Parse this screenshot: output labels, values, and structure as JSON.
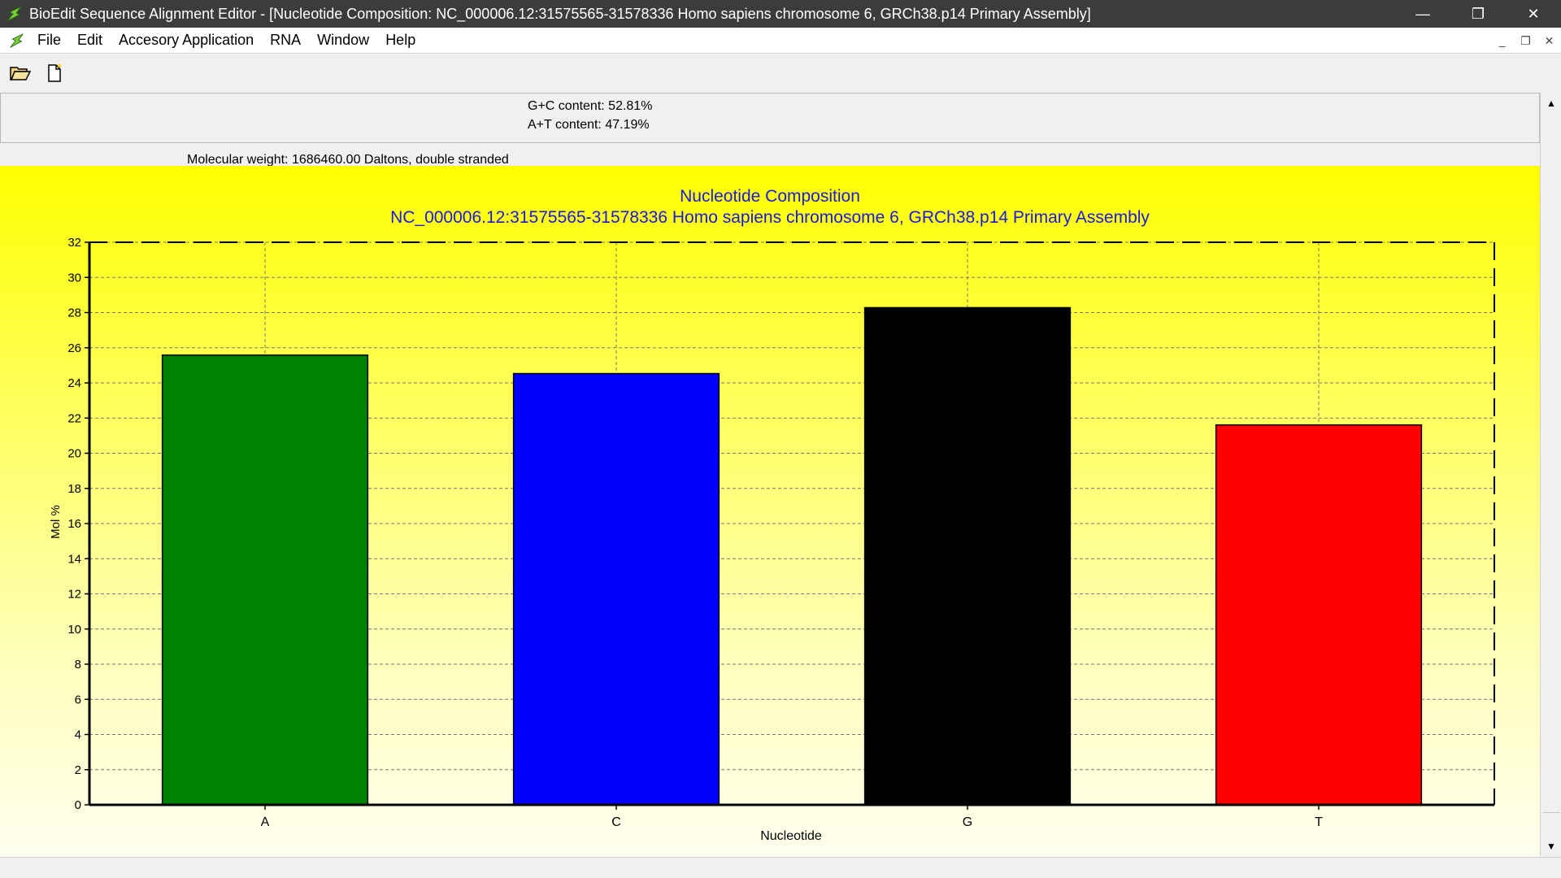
{
  "window": {
    "title": "BioEdit Sequence Alignment Editor - [Nucleotide Composition: NC_000006.12:31575565-31578336 Homo sapiens chromosome 6, GRCh38.p14 Primary Assembly]",
    "minimize": "—",
    "restore": "❐",
    "close": "✕"
  },
  "menu": {
    "items": [
      "File",
      "Edit",
      "Accesory Application",
      "RNA",
      "Window",
      "Help"
    ],
    "mdi_minimize": "_",
    "mdi_restore": "❐",
    "mdi_close": "✕"
  },
  "toolbar": {
    "open_icon": "folder-open-icon",
    "new_icon": "new-document-icon"
  },
  "info": {
    "gc_content": "G+C content: 52.81%",
    "at_content": "A+T content: 47.19%",
    "molecular_weight": "Molecular weight: 1686460.00 Daltons, double stranded"
  },
  "chart_data": {
    "type": "bar",
    "title": "Nucleotide Composition",
    "subtitle": "NC_000006.12:31575565-31578336 Homo sapiens chromosome 6, GRCh38.p14 Primary Assembly",
    "xlabel": "Nucleotide",
    "ylabel": "Mol %",
    "categories": [
      "A",
      "C",
      "G",
      "T"
    ],
    "values": [
      25.58,
      24.53,
      28.28,
      21.61
    ],
    "colors": [
      "#008000",
      "#0000ff",
      "#000000",
      "#ff0000"
    ],
    "ylim": [
      0,
      32
    ],
    "yticks": [
      0,
      2,
      4,
      6,
      8,
      10,
      12,
      14,
      16,
      18,
      20,
      22,
      24,
      26,
      28,
      30,
      32
    ],
    "grid": true,
    "title_color": "#1a1adc"
  }
}
